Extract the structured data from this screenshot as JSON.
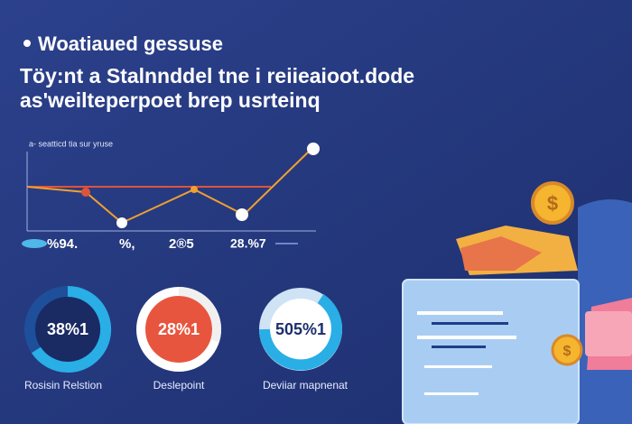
{
  "header": {
    "title": "Woatiaued gessuse",
    "lines": [
      "Töy:nt a Stalnnddel tne i reiieaioot.dode",
      "as'weilteperpoet brep usrteinq"
    ]
  },
  "chart": {
    "caption": "a- seatticd tia sur yruse",
    "labels": [
      "%94.",
      "%,",
      "2®5",
      "28.%7"
    ]
  },
  "donuts": [
    {
      "text": "38%1",
      "label": "Rosisin Relstion"
    },
    {
      "text": "28%1",
      "label": "Deslepoint"
    },
    {
      "text": "505%1",
      "label": "Deviiar mapnenat"
    }
  ]
}
